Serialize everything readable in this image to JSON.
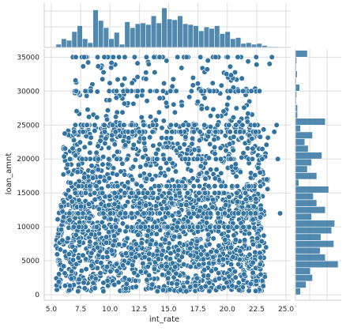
{
  "chart_data": {
    "type": "scatter",
    "kind": "jointplot",
    "xlabel": "int_rate",
    "ylabel": "loan_amnt",
    "xlim": [
      4.4,
      25.4
    ],
    "ylim": [
      -800,
      36200
    ],
    "grid": true,
    "x_ticks": [
      5.0,
      7.5,
      10.0,
      12.5,
      15.0,
      17.5,
      20.0,
      22.5,
      25.0
    ],
    "x_tick_labels": [
      "5.0",
      "7.5",
      "10.0",
      "12.5",
      "15.0",
      "17.5",
      "20.0",
      "22.5",
      "25.0"
    ],
    "y_ticks": [
      0,
      5000,
      10000,
      15000,
      20000,
      25000,
      30000,
      35000
    ],
    "y_tick_labels": [
      "0",
      "5000",
      "10000",
      "15000",
      "20000",
      "25000",
      "30000",
      "35000"
    ],
    "colors": {
      "marker": "#3274a1",
      "marker_edge": "#ffffff",
      "bar": "#3274a1",
      "grid": "#dddddd",
      "spine": "#cccccc"
    },
    "scatter": {
      "dense_band": {
        "x_range": [
          5.4,
          23.2
        ],
        "y_range": [
          500,
          15000
        ]
      },
      "mid_band": {
        "x_range": [
          6.0,
          23.5
        ],
        "y_range": [
          15000,
          25000
        ]
      },
      "sparse_band": {
        "x_range": [
          7.0,
          22.5
        ],
        "y_range": [
          25000,
          34500
        ]
      },
      "y_lines": [
        35000,
        30000,
        25000,
        24000,
        20000,
        16000,
        15000,
        12000,
        10000
      ],
      "outliers": [
        [
          23.8,
          35000
        ],
        [
          24.2,
          25000
        ],
        [
          24.0,
          24000
        ],
        [
          24.3,
          20000
        ],
        [
          24.5,
          12000
        ],
        [
          23.3,
          7000
        ],
        [
          22.8,
          4500
        ],
        [
          16.5,
          500
        ],
        [
          21.0,
          700
        ],
        [
          23.6,
          34000
        ]
      ]
    },
    "x_histogram": {
      "bin_edges_start": 5.4,
      "bin_width": 0.45,
      "counts": [
        8,
        22,
        18,
        40,
        55,
        22,
        12,
        95,
        68,
        50,
        22,
        38,
        8,
        65,
        50,
        60,
        62,
        58,
        80,
        62,
        100,
        72,
        70,
        80,
        60,
        58,
        55,
        42,
        52,
        48,
        55,
        35,
        40,
        22,
        25,
        10,
        12,
        8,
        10,
        5,
        2,
        2,
        1
      ]
    },
    "y_histogram": {
      "bin_edges_start": 0,
      "bin_width": 1000,
      "counts": [
        12,
        25,
        40,
        35,
        100,
        70,
        58,
        90,
        60,
        85,
        92,
        38,
        70,
        50,
        42,
        78,
        8,
        50,
        28,
        38,
        62,
        30,
        22,
        40,
        12,
        70,
        5,
        5,
        2,
        3,
        10,
        2,
        4,
        2,
        3,
        28
      ]
    }
  }
}
